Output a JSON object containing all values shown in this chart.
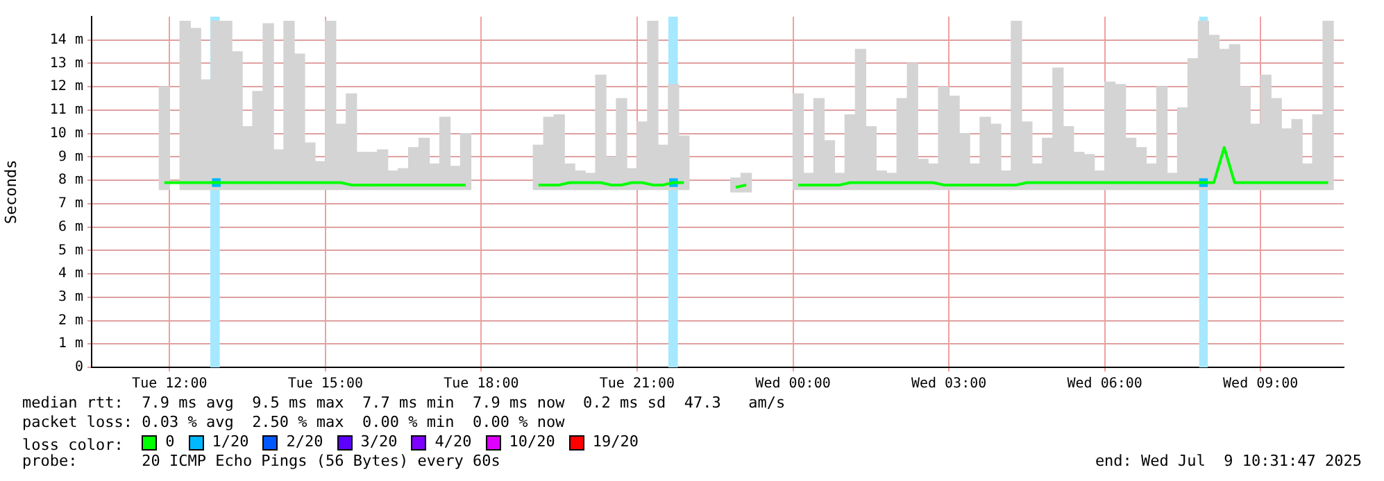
{
  "chart_data": {
    "type": "bar",
    "ylabel": "Seconds",
    "x": [
      "2025-07-08T11:54",
      "2025-07-08T12:06",
      "2025-07-08T12:18",
      "2025-07-08T12:30",
      "2025-07-08T12:42",
      "2025-07-08T12:54",
      "2025-07-08T13:06",
      "2025-07-08T13:18",
      "2025-07-08T13:30",
      "2025-07-08T13:42",
      "2025-07-08T13:54",
      "2025-07-08T14:06",
      "2025-07-08T14:18",
      "2025-07-08T14:30",
      "2025-07-08T14:42",
      "2025-07-08T14:54",
      "2025-07-08T15:06",
      "2025-07-08T15:18",
      "2025-07-08T15:30",
      "2025-07-08T15:42",
      "2025-07-08T15:54",
      "2025-07-08T16:06",
      "2025-07-08T16:18",
      "2025-07-08T16:30",
      "2025-07-08T16:42",
      "2025-07-08T16:54",
      "2025-07-08T17:06",
      "2025-07-08T17:18",
      "2025-07-08T17:30",
      "2025-07-08T17:42",
      "2025-07-08T18:30",
      "2025-07-08T19:06",
      "2025-07-08T19:18",
      "2025-07-08T19:30",
      "2025-07-08T19:42",
      "2025-07-08T19:54",
      "2025-07-08T20:06",
      "2025-07-08T20:18",
      "2025-07-08T20:30",
      "2025-07-08T20:42",
      "2025-07-08T20:54",
      "2025-07-08T21:06",
      "2025-07-08T21:18",
      "2025-07-08T21:30",
      "2025-07-08T21:42",
      "2025-07-08T21:54",
      "2025-07-08T22:24",
      "2025-07-08T22:54",
      "2025-07-08T23:06",
      "2025-07-08T23:36",
      "2025-07-09T00:06",
      "2025-07-09T00:18",
      "2025-07-09T00:30",
      "2025-07-09T00:42",
      "2025-07-09T00:54",
      "2025-07-09T01:06",
      "2025-07-09T01:18",
      "2025-07-09T01:30",
      "2025-07-09T01:42",
      "2025-07-09T01:54",
      "2025-07-09T02:06",
      "2025-07-09T02:18",
      "2025-07-09T02:30",
      "2025-07-09T02:42",
      "2025-07-09T02:54",
      "2025-07-09T03:06",
      "2025-07-09T03:18",
      "2025-07-09T03:30",
      "2025-07-09T03:42",
      "2025-07-09T03:54",
      "2025-07-09T04:06",
      "2025-07-09T04:18",
      "2025-07-09T04:30",
      "2025-07-09T04:42",
      "2025-07-09T04:54",
      "2025-07-09T05:06",
      "2025-07-09T05:18",
      "2025-07-09T05:30",
      "2025-07-09T05:42",
      "2025-07-09T05:54",
      "2025-07-09T06:06",
      "2025-07-09T06:18",
      "2025-07-09T06:30",
      "2025-07-09T06:42",
      "2025-07-09T06:54",
      "2025-07-09T07:06",
      "2025-07-09T07:18",
      "2025-07-09T07:30",
      "2025-07-09T07:42",
      "2025-07-09T07:54",
      "2025-07-09T08:06",
      "2025-07-09T08:18",
      "2025-07-09T08:30",
      "2025-07-09T08:42",
      "2025-07-09T08:54",
      "2025-07-09T09:06",
      "2025-07-09T09:18",
      "2025-07-09T09:30",
      "2025-07-09T09:42",
      "2025-07-09T09:54",
      "2025-07-09T10:06",
      "2025-07-09T10:18"
    ],
    "series": [
      {
        "color": "#d4d4d4",
        "base": [
          7.6,
          null,
          7.6,
          7.6,
          7.6,
          7.6,
          7.6,
          7.6,
          7.6,
          7.6,
          7.6,
          7.6,
          7.6,
          7.6,
          7.6,
          7.6,
          7.6,
          7.6,
          7.6,
          7.6,
          7.6,
          7.6,
          7.6,
          7.6,
          7.6,
          7.6,
          7.6,
          7.6,
          7.6,
          7.6,
          null,
          7.6,
          7.6,
          7.6,
          7.6,
          7.6,
          7.6,
          7.6,
          7.6,
          7.6,
          7.6,
          7.6,
          7.6,
          7.6,
          7.6,
          7.6,
          null,
          7.5,
          7.5,
          null,
          7.6,
          7.6,
          7.6,
          7.6,
          7.6,
          7.6,
          7.6,
          7.6,
          7.6,
          7.6,
          7.6,
          7.6,
          7.6,
          7.6,
          7.6,
          7.6,
          7.6,
          7.6,
          7.6,
          7.6,
          7.6,
          7.6,
          7.6,
          7.6,
          7.6,
          7.6,
          7.6,
          7.6,
          7.6,
          7.6,
          7.6,
          7.6,
          7.6,
          7.6,
          7.6,
          7.6,
          7.6,
          7.6,
          7.6,
          7.6,
          7.6,
          7.6,
          7.6,
          7.6,
          7.6,
          7.6,
          7.6,
          7.6,
          7.6,
          7.6,
          7.6,
          7.6
        ],
        "values": [
          4.4,
          null,
          7.2,
          6.9,
          4.7,
          7.2,
          7.2,
          5.9,
          2.7,
          4.2,
          7.1,
          1.7,
          7.2,
          5.8,
          2.0,
          1.2,
          7.2,
          2.8,
          4.1,
          1.6,
          1.6,
          1.7,
          0.8,
          0.9,
          1.8,
          2.2,
          1.1,
          3.1,
          1.0,
          2.4,
          null,
          1.9,
          3.1,
          3.2,
          1.1,
          0.8,
          0.7,
          4.9,
          1.4,
          3.9,
          0.9,
          2.9,
          7.2,
          1.9,
          4.5,
          2.3,
          null,
          0.6,
          0.8,
          null,
          4.1,
          0.7,
          3.9,
          2.1,
          0.7,
          3.2,
          6.0,
          2.7,
          0.8,
          0.7,
          3.9,
          5.4,
          1.3,
          1.1,
          4.4,
          4.0,
          2.4,
          1.1,
          3.1,
          2.8,
          0.8,
          7.2,
          2.9,
          1.1,
          2.2,
          5.2,
          2.7,
          1.6,
          1.5,
          0.8,
          4.6,
          4.5,
          2.2,
          1.8,
          1.1,
          4.4,
          0.7,
          3.5,
          5.6,
          7.2,
          6.6,
          6.0,
          6.2,
          4.4,
          2.8,
          4.9,
          3.9,
          2.6,
          3.0,
          1.1,
          3.2,
          7.2
        ]
      },
      {
        "type": "line",
        "name": "0",
        "color": "#00ff00",
        "values": [
          7.9,
          7.9,
          7.9,
          7.9,
          7.9,
          7.9,
          7.9,
          7.9,
          7.9,
          7.9,
          7.9,
          7.9,
          7.9,
          7.9,
          7.9,
          7.9,
          7.9,
          7.9,
          7.8,
          7.8,
          7.8,
          7.8,
          7.8,
          7.8,
          7.8,
          7.8,
          7.8,
          7.8,
          7.8,
          7.8,
          null,
          7.8,
          7.8,
          7.8,
          7.9,
          7.9,
          7.9,
          7.9,
          7.8,
          7.8,
          7.9,
          7.9,
          7.8,
          7.8,
          7.9,
          7.9,
          null,
          7.7,
          7.8,
          null,
          7.8,
          7.8,
          7.8,
          7.8,
          7.8,
          7.9,
          7.9,
          7.9,
          7.9,
          7.9,
          7.9,
          7.9,
          7.9,
          7.9,
          7.8,
          7.8,
          7.8,
          7.8,
          7.8,
          7.8,
          7.8,
          7.8,
          7.9,
          7.9,
          7.9,
          7.9,
          7.9,
          7.9,
          7.9,
          7.9,
          7.9,
          7.9,
          7.9,
          7.9,
          7.9,
          7.9,
          7.9,
          7.9,
          7.9,
          7.9,
          7.9,
          9.4,
          7.9,
          7.9,
          7.9,
          7.9,
          7.9,
          7.9,
          7.9,
          7.9,
          7.9,
          7.9
        ]
      },
      {
        "type": "scatter",
        "name": "1/20",
        "color": "#00b8ff",
        "marker": "square",
        "x": [
          "2025-07-08T12:54",
          "2025-07-08T21:42",
          "2025-07-09T07:54"
        ],
        "values": [
          7.9,
          7.9,
          7.9
        ]
      },
      {
        "type": "line",
        "name": "2/20",
        "color": "#0059ff",
        "values": [
          null,
          null,
          null,
          null,
          null,
          null,
          null,
          null,
          null,
          null,
          null,
          null,
          null,
          null,
          null,
          null,
          null,
          null,
          null,
          null,
          null,
          null,
          null,
          null,
          null,
          null,
          null,
          null,
          null,
          null,
          null,
          null,
          null,
          null,
          null,
          null,
          null,
          null,
          null,
          null,
          null,
          null,
          null,
          null,
          null,
          null,
          null,
          null,
          null,
          null,
          null,
          null,
          null,
          null,
          null,
          null,
          null,
          null,
          null,
          null,
          null,
          null,
          null,
          null,
          null,
          null,
          null,
          null,
          null,
          null,
          null,
          null,
          null,
          null,
          null,
          null,
          null,
          null,
          null,
          null,
          null,
          null,
          null,
          null,
          null,
          null,
          null,
          null,
          null,
          null,
          null,
          null,
          null,
          null,
          null,
          null,
          null,
          null,
          null,
          null,
          null,
          null
        ]
      },
      {
        "type": "line",
        "name": "3/20",
        "color": "#5e00ff",
        "values": [
          null,
          null,
          null,
          null,
          null,
          null,
          null,
          null,
          null,
          null,
          null,
          null,
          null,
          null,
          null,
          null,
          null,
          null,
          null,
          null,
          null,
          null,
          null,
          null,
          null,
          null,
          null,
          null,
          null,
          null,
          null,
          null,
          null,
          null,
          null,
          null,
          null,
          null,
          null,
          null,
          null,
          null,
          null,
          null,
          null,
          null,
          null,
          null,
          null,
          null,
          null,
          null,
          null,
          null,
          null,
          null,
          null,
          null,
          null,
          null,
          null,
          null,
          null,
          null,
          null,
          null,
          null,
          null,
          null,
          null,
          null,
          null,
          null,
          null,
          null,
          null,
          null,
          null,
          null,
          null,
          null,
          null,
          null,
          null,
          null,
          null,
          null,
          null,
          null,
          null,
          null,
          null,
          null,
          null,
          null,
          null,
          null,
          null,
          null,
          null,
          null,
          null
        ]
      },
      {
        "type": "line",
        "name": "4/20",
        "color": "#7e00ff",
        "values": [
          null,
          null,
          null,
          null,
          null,
          null,
          null,
          null,
          null,
          null,
          null,
          null,
          null,
          null,
          null,
          null,
          null,
          null,
          null,
          null,
          null,
          null,
          null,
          null,
          null,
          null,
          null,
          null,
          null,
          null,
          null,
          null,
          null,
          null,
          null,
          null,
          null,
          null,
          null,
          null,
          null,
          null,
          null,
          null,
          null,
          null,
          null,
          null,
          null,
          null,
          null,
          null,
          null,
          null,
          null,
          null,
          null,
          null,
          null,
          null,
          null,
          null,
          null,
          null,
          null,
          null,
          null,
          null,
          null,
          null,
          null,
          null,
          null,
          null,
          null,
          null,
          null,
          null,
          null,
          null,
          null,
          null,
          null,
          null,
          null,
          null,
          null,
          null,
          null,
          null,
          null,
          null,
          null,
          null,
          null,
          null,
          null,
          null,
          null,
          null,
          null,
          null
        ]
      },
      {
        "type": "line",
        "name": "10/20",
        "color": "#dd00ff",
        "values": [
          null,
          null,
          null,
          null,
          null,
          null,
          null,
          null,
          null,
          null,
          null,
          null,
          null,
          null,
          null,
          null,
          null,
          null,
          null,
          null,
          null,
          null,
          null,
          null,
          null,
          null,
          null,
          null,
          null,
          null,
          null,
          null,
          null,
          null,
          null,
          null,
          null,
          null,
          null,
          null,
          null,
          null,
          null,
          null,
          null,
          null,
          null,
          null,
          null,
          null,
          null,
          null,
          null,
          null,
          null,
          null,
          null,
          null,
          null,
          null,
          null,
          null,
          null,
          null,
          null,
          null,
          null,
          null,
          null,
          null,
          null,
          null,
          null,
          null,
          null,
          null,
          null,
          null,
          null,
          null,
          null,
          null,
          null,
          null,
          null,
          null,
          null,
          null,
          null,
          null,
          null,
          null,
          null,
          null,
          null,
          null,
          null,
          null,
          null,
          null,
          null,
          null
        ]
      },
      {
        "type": "line",
        "name": "19/20",
        "color": "#ff0000",
        "values": [
          null,
          null,
          null,
          null,
          null,
          null,
          null,
          null,
          null,
          null,
          null,
          null,
          null,
          null,
          null,
          null,
          null,
          null,
          null,
          null,
          null,
          null,
          null,
          null,
          null,
          null,
          null,
          null,
          null,
          null,
          null,
          null,
          null,
          null,
          null,
          null,
          null,
          null,
          null,
          null,
          null,
          null,
          null,
          null,
          null,
          null,
          null,
          null,
          null,
          null,
          null,
          null,
          null,
          null,
          null,
          null,
          null,
          null,
          null,
          null,
          null,
          null,
          null,
          null,
          null,
          null,
          null,
          null,
          null,
          null,
          null,
          null,
          null,
          null,
          null,
          null,
          null,
          null,
          null,
          null,
          null,
          null,
          null,
          null,
          null,
          null,
          null,
          null,
          null,
          null,
          null,
          null,
          null,
          null,
          null,
          null,
          null,
          null,
          null,
          null,
          null,
          null
        ]
      }
    ],
    "bands": [
      {
        "axis": "x",
        "from": "2025-07-08T12:47",
        "to": "2025-07-08T12:58",
        "color": "#a6e8ff"
      },
      {
        "axis": "x",
        "from": "2025-07-08T21:36",
        "to": "2025-07-08T21:47",
        "color": "#a6e8ff"
      },
      {
        "axis": "x",
        "from": "2025-07-09T07:49",
        "to": "2025-07-09T07:59",
        "color": "#a6e8ff"
      }
    ],
    "xlim": [
      "2025-07-08T10:30",
      "2025-07-09T10:36"
    ],
    "xticks": [
      {
        "value": "2025-07-08T12:00",
        "label": "Tue 12:00"
      },
      {
        "value": "2025-07-08T15:00",
        "label": "Tue 15:00"
      },
      {
        "value": "2025-07-08T18:00",
        "label": "Tue 18:00"
      },
      {
        "value": "2025-07-08T21:00",
        "label": "Tue 21:00"
      },
      {
        "value": "2025-07-09T00:00",
        "label": "Wed 00:00"
      },
      {
        "value": "2025-07-09T03:00",
        "label": "Wed 03:00"
      },
      {
        "value": "2025-07-09T06:00",
        "label": "Wed 06:00"
      },
      {
        "value": "2025-07-09T09:00",
        "label": "Wed 09:00"
      }
    ],
    "ylim": [
      0,
      15
    ],
    "yticks": [
      0,
      {
        "value": 1,
        "label": "1 m"
      },
      {
        "value": 2,
        "label": "2 m"
      },
      {
        "value": 3,
        "label": "3 m"
      },
      {
        "value": 4,
        "label": "4 m"
      },
      {
        "value": 5,
        "label": "5 m"
      },
      {
        "value": 6,
        "label": "6 m"
      },
      {
        "value": 7,
        "label": "7 m"
      },
      {
        "value": 8,
        "label": "8 m"
      },
      {
        "value": 9,
        "label": "9 m"
      },
      {
        "value": 10,
        "label": "10 m"
      },
      {
        "value": 11,
        "label": "11 m"
      },
      {
        "value": 12,
        "label": "12 m"
      },
      {
        "value": 13,
        "label": "13 m"
      },
      {
        "value": 14,
        "label": "14 m"
      }
    ],
    "grid": true,
    "legend": "bottom",
    "legend_title": "loss color:",
    "annotations": [
      "median rtt:  7.9 ms avg  9.5 ms max  7.7 ms min  7.9 ms now  0.2 ms sd  47.3   am/s",
      "packet loss: 0.03 % avg  2.50 % max  0.00 % min  0.00 % now",
      "probe:       20 ICMP Echo Pings (56 Bytes) every 60s",
      "end: Wed Jul  9 10:31:47 2025"
    ]
  }
}
